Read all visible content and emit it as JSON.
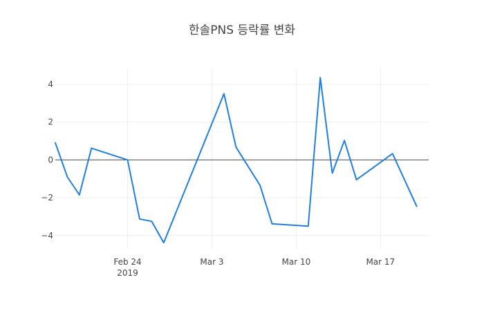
{
  "chart_data": {
    "type": "line",
    "title": "한솔PNS 등락률 변화",
    "xlabel": "",
    "ylabel": "",
    "grid": true,
    "xlim": [
      "2019-02-18",
      "2019-03-21"
    ],
    "ylim": [
      -4.7,
      4.8
    ],
    "x_ticks": [
      {
        "date": "2019-02-24",
        "label": "Feb 24",
        "sublabel": "2019"
      },
      {
        "date": "2019-03-03",
        "label": "Mar 3",
        "sublabel": ""
      },
      {
        "date": "2019-03-10",
        "label": "Mar 10",
        "sublabel": ""
      },
      {
        "date": "2019-03-17",
        "label": "Mar 17",
        "sublabel": ""
      }
    ],
    "y_ticks": [
      4,
      2,
      0,
      -2,
      -4
    ],
    "y_tick_labels": [
      "4",
      "2",
      "0",
      "−2",
      "−4"
    ],
    "colors": {
      "line": "#1f7fe0",
      "zero_line": "#444444",
      "grid": "#eeeeee"
    },
    "series": [
      {
        "name": "",
        "x": [
          "2019-02-18",
          "2019-02-19",
          "2019-02-20",
          "2019-02-21",
          "2019-02-24",
          "2019-02-25",
          "2019-02-26",
          "2019-02-27",
          "2019-03-04",
          "2019-03-05",
          "2019-03-07",
          "2019-03-08",
          "2019-03-11",
          "2019-03-12",
          "2019-03-13",
          "2019-03-14",
          "2019-03-15",
          "2019-03-18",
          "2019-03-20"
        ],
        "y": [
          0.9,
          -0.9,
          -1.85,
          0.62,
          0.0,
          -3.12,
          -3.25,
          -4.38,
          3.5,
          0.68,
          -1.35,
          -3.38,
          -3.5,
          4.35,
          -0.7,
          1.03,
          -1.05,
          0.33,
          -2.45
        ]
      }
    ]
  }
}
